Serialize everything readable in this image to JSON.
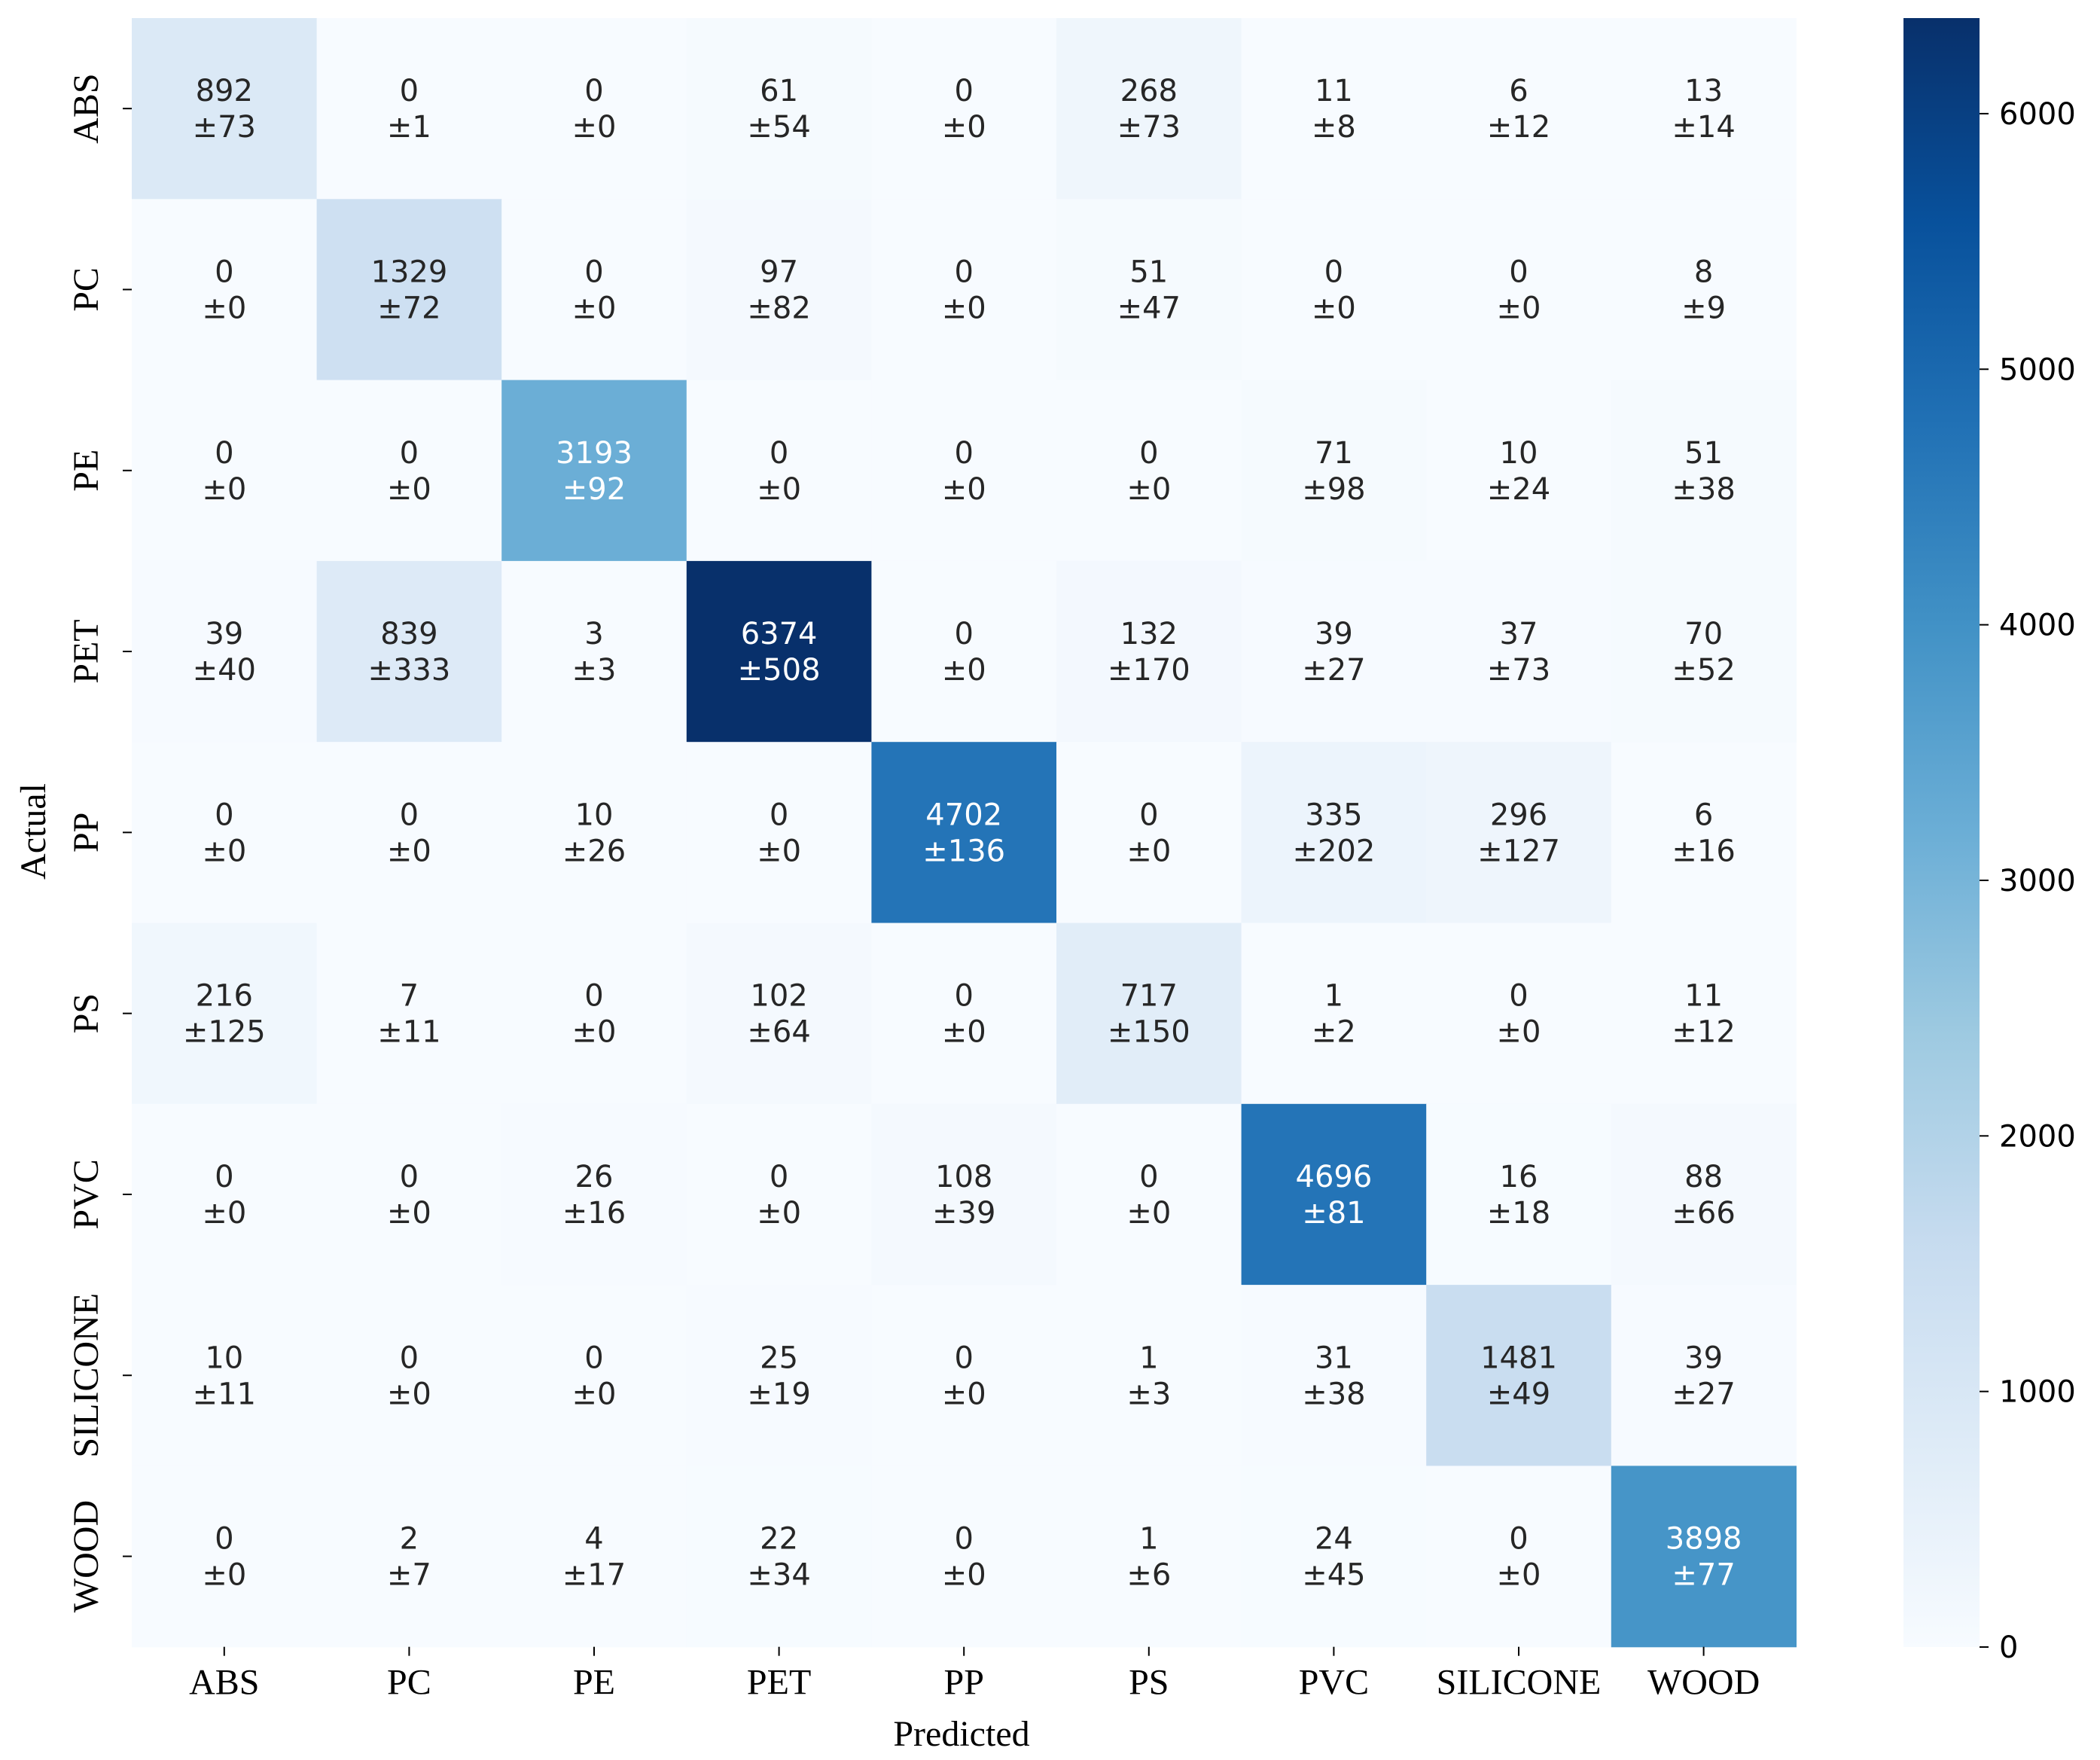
{
  "chart_data": {
    "type": "heatmap",
    "xlabel": "Predicted",
    "ylabel": "Actual",
    "x_categories": [
      "ABS",
      "PC",
      "PE",
      "PET",
      "PP",
      "PS",
      "PVC",
      "SILICONE",
      "WOOD"
    ],
    "y_categories": [
      "ABS",
      "PC",
      "PE",
      "PET",
      "PP",
      "PS",
      "PVC",
      "SILICONE",
      "WOOD"
    ],
    "values": [
      [
        892,
        0,
        0,
        61,
        0,
        268,
        11,
        6,
        13
      ],
      [
        0,
        1329,
        0,
        97,
        0,
        51,
        0,
        0,
        8
      ],
      [
        0,
        0,
        3193,
        0,
        0,
        0,
        71,
        10,
        51
      ],
      [
        39,
        839,
        3,
        6374,
        0,
        132,
        39,
        37,
        70
      ],
      [
        0,
        0,
        10,
        0,
        4702,
        0,
        335,
        296,
        6
      ],
      [
        216,
        7,
        0,
        102,
        0,
        717,
        1,
        0,
        11
      ],
      [
        0,
        0,
        26,
        0,
        108,
        0,
        4696,
        16,
        88
      ],
      [
        10,
        0,
        0,
        25,
        0,
        1,
        31,
        1481,
        39
      ],
      [
        0,
        2,
        4,
        22,
        0,
        1,
        24,
        0,
        3898
      ]
    ],
    "errors": [
      [
        "±73",
        "±1",
        "±0",
        "±54",
        "±0",
        "±73",
        "±8",
        "±12",
        "±14"
      ],
      [
        "±0",
        "±72",
        "±0",
        "±82",
        "±0",
        "±47",
        "±0",
        "±0",
        "±9"
      ],
      [
        "±0",
        "±0",
        "±92",
        "±0",
        "±0",
        "±0",
        "±98",
        "±24",
        "±38"
      ],
      [
        "±40",
        "±333",
        "±3",
        "±508",
        "±0",
        "±170",
        "±27",
        "±73",
        "±52"
      ],
      [
        "±0",
        "±0",
        "±26",
        "±0",
        "±136",
        "±0",
        "±202",
        "±127",
        "±16"
      ],
      [
        "±125",
        "±11",
        "±0",
        "±64",
        "±0",
        "±150",
        "±2",
        "±0",
        "±12"
      ],
      [
        "±0",
        "±0",
        "±16",
        "±0",
        "±39",
        "±0",
        "±81",
        "±18",
        "±66"
      ],
      [
        "±11",
        "±0",
        "±0",
        "±19",
        "±0",
        "±3",
        "±38",
        "±49",
        "±27"
      ],
      [
        "±0",
        "±7",
        "±17",
        "±34",
        "±0",
        "±6",
        "±45",
        "±0",
        "±77"
      ]
    ],
    "colorbar": {
      "min": 0,
      "max": 6374,
      "ticks": [
        0,
        1000,
        2000,
        3000,
        4000,
        5000,
        6000
      ],
      "colormap": "Blues"
    },
    "grid": false
  }
}
